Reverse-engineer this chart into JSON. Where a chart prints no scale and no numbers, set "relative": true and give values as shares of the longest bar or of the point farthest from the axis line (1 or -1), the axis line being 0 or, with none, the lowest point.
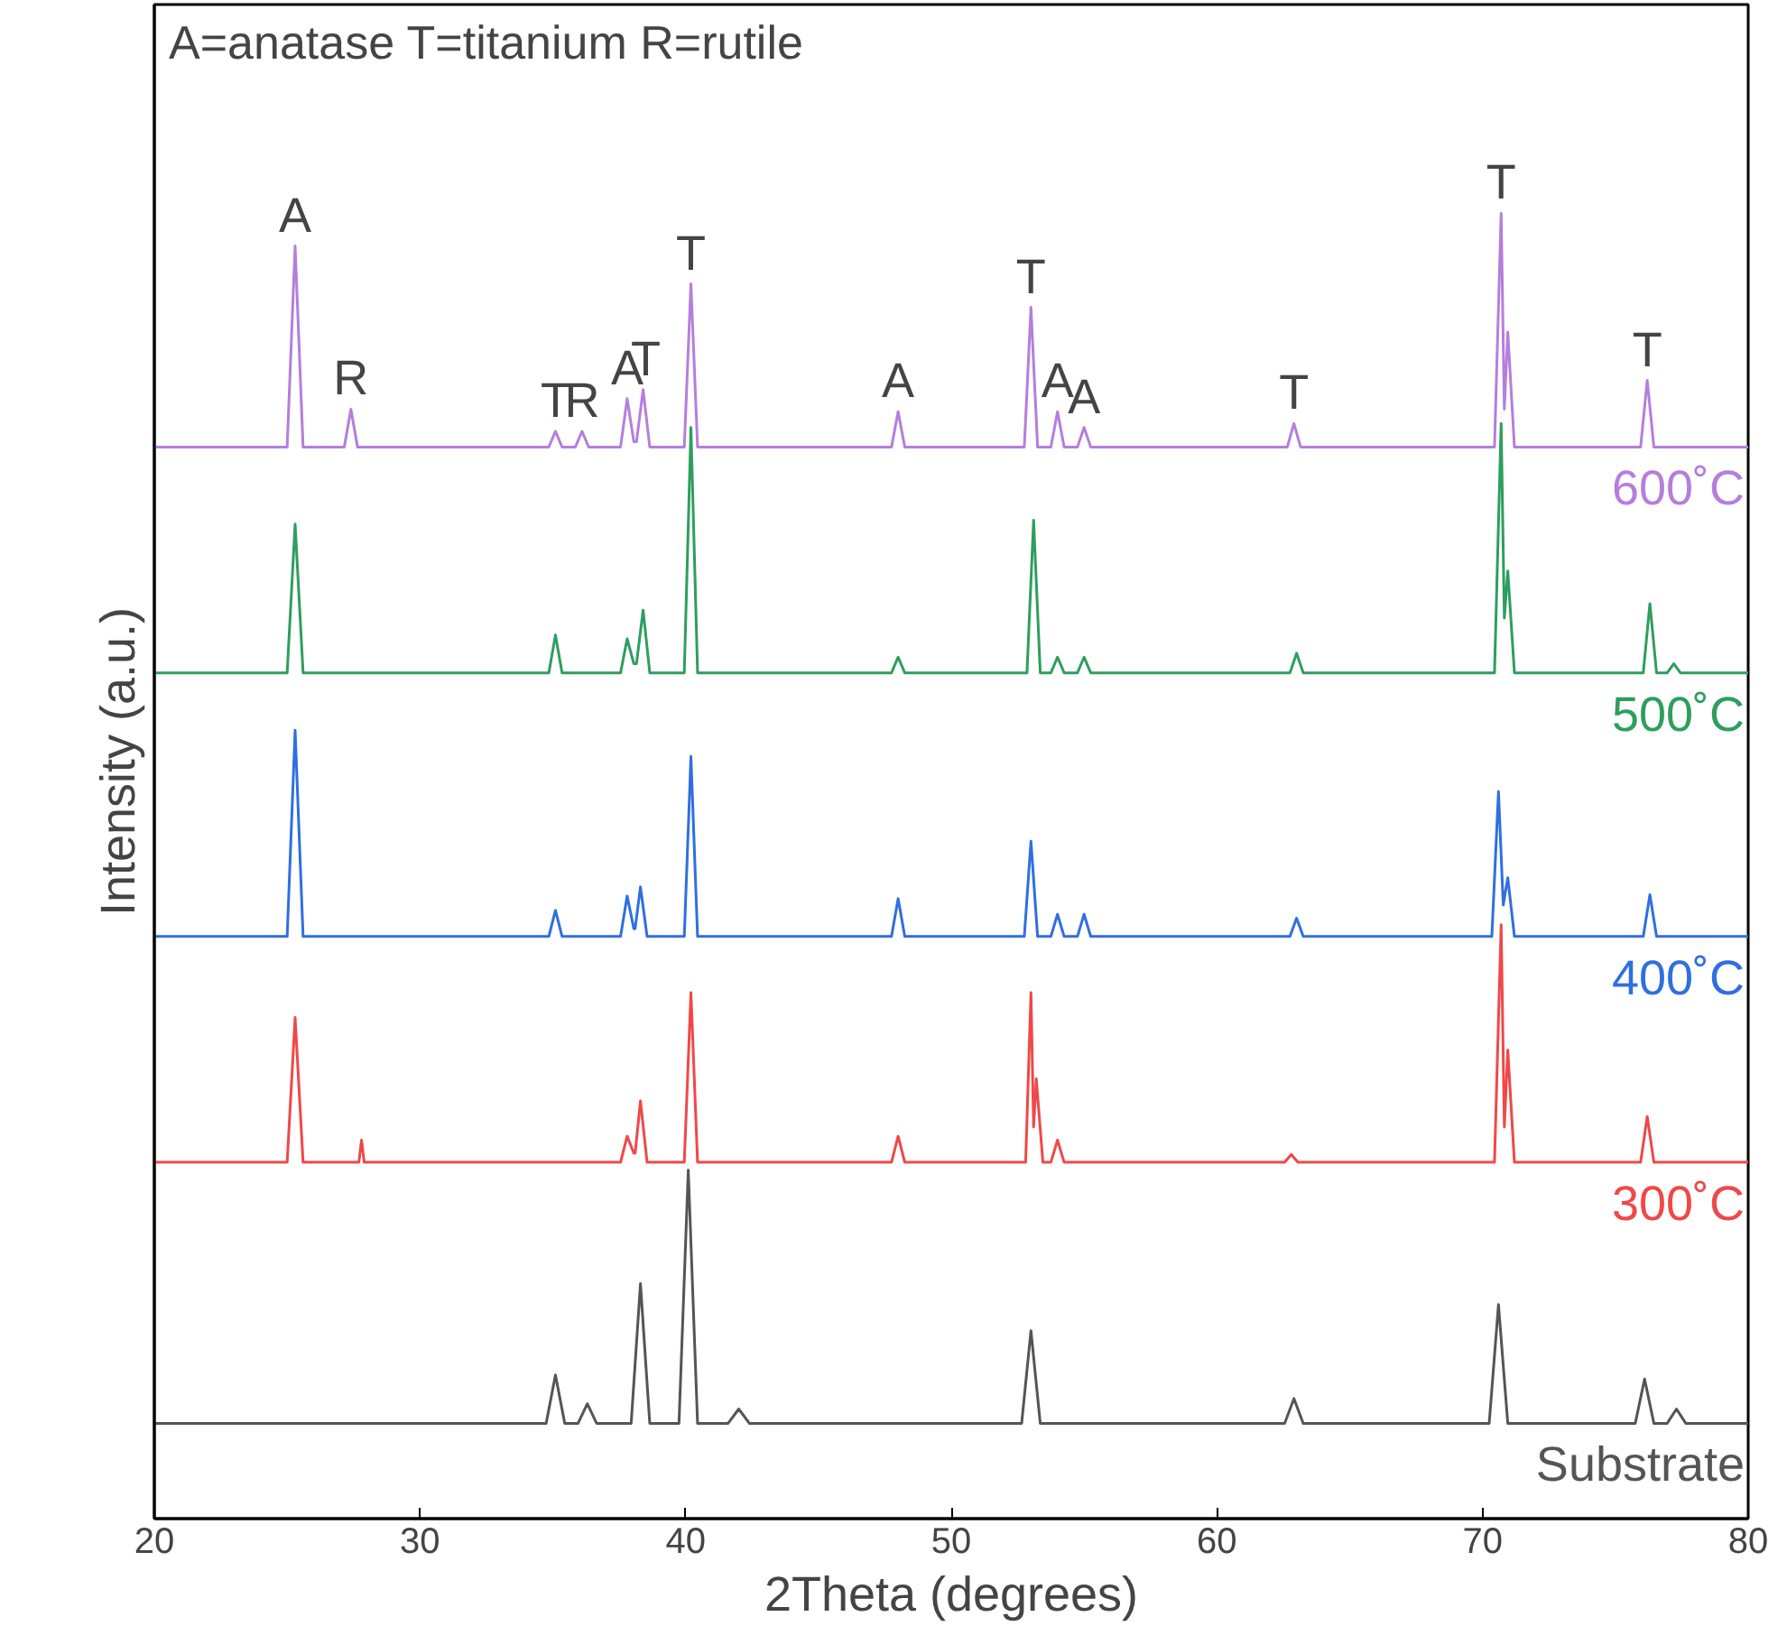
{
  "chart_data": {
    "type": "line",
    "relative": true,
    "xlabel": "2Theta (degrees)",
    "ylabel": "Intensity (a.u.)",
    "xlim": [
      20,
      80
    ],
    "xticks": [
      20,
      30,
      40,
      50,
      60,
      70,
      80
    ],
    "grid": false,
    "line_style": "solid",
    "marker": "none",
    "series": [
      {
        "name": "600˚C",
        "color": "#b57edc",
        "x": [
          20,
          25.0,
          25.3,
          25.6,
          27.15,
          27.4,
          27.65,
          34.85,
          35.1,
          35.35,
          35.85,
          36.1,
          36.35,
          37.55,
          37.8,
          38.05,
          38.15,
          38.4,
          38.65,
          39.95,
          40.2,
          40.45,
          47.75,
          48.0,
          48.25,
          52.75,
          53.0,
          53.25,
          53.75,
          54.0,
          54.25,
          54.75,
          55.0,
          55.25,
          62.65,
          62.9,
          63.15,
          70.45,
          70.7,
          70.82,
          70.95,
          71.2,
          75.95,
          76.2,
          76.45,
          80
        ],
        "values": [
          0.821,
          0.821,
          0.975,
          0.821,
          0.821,
          0.85,
          0.821,
          0.821,
          0.833,
          0.821,
          0.821,
          0.833,
          0.821,
          0.821,
          0.858,
          0.825,
          0.825,
          0.865,
          0.821,
          0.821,
          0.946,
          0.821,
          0.821,
          0.848,
          0.821,
          0.821,
          0.928,
          0.821,
          0.821,
          0.848,
          0.821,
          0.821,
          0.836,
          0.821,
          0.821,
          0.839,
          0.821,
          0.821,
          1.0,
          0.85,
          0.909,
          0.821,
          0.821,
          0.872,
          0.821,
          0.821
        ]
      },
      {
        "name": "500˚C",
        "color": "#2e9e5e",
        "x": [
          20,
          25.0,
          25.3,
          25.6,
          34.85,
          35.1,
          35.35,
          37.55,
          37.8,
          38.05,
          38.15,
          38.4,
          38.65,
          39.95,
          40.2,
          40.45,
          47.75,
          48.0,
          48.25,
          52.85,
          53.1,
          53.35,
          53.75,
          54.0,
          54.25,
          54.75,
          55.0,
          55.25,
          62.75,
          63.0,
          63.25,
          70.45,
          70.7,
          70.82,
          70.95,
          71.2,
          76.05,
          76.3,
          76.55,
          76.95,
          77.2,
          77.45,
          80
        ],
        "values": [
          0.648,
          0.648,
          0.762,
          0.648,
          0.648,
          0.677,
          0.648,
          0.648,
          0.674,
          0.655,
          0.655,
          0.696,
          0.648,
          0.648,
          0.836,
          0.648,
          0.648,
          0.66,
          0.648,
          0.648,
          0.765,
          0.648,
          0.648,
          0.66,
          0.648,
          0.648,
          0.66,
          0.648,
          0.648,
          0.663,
          0.648,
          0.648,
          0.839,
          0.69,
          0.726,
          0.648,
          0.648,
          0.701,
          0.648,
          0.648,
          0.655,
          0.648,
          0.648
        ]
      },
      {
        "name": "400˚C",
        "color": "#2f6fe0",
        "x": [
          20,
          25.0,
          25.3,
          25.6,
          34.85,
          35.1,
          35.35,
          37.55,
          37.8,
          38.05,
          38.1,
          38.3,
          38.55,
          39.95,
          40.2,
          40.45,
          47.75,
          48.0,
          48.25,
          52.75,
          53.0,
          53.25,
          53.75,
          54.0,
          54.25,
          54.75,
          55.0,
          55.25,
          62.75,
          63.0,
          63.25,
          70.35,
          70.6,
          70.78,
          70.95,
          71.2,
          76.05,
          76.3,
          76.55,
          80
        ],
        "values": [
          0.446,
          0.446,
          0.604,
          0.446,
          0.446,
          0.466,
          0.446,
          0.446,
          0.477,
          0.452,
          0.452,
          0.484,
          0.446,
          0.446,
          0.584,
          0.446,
          0.446,
          0.475,
          0.446,
          0.446,
          0.519,
          0.446,
          0.446,
          0.463,
          0.446,
          0.446,
          0.463,
          0.446,
          0.446,
          0.46,
          0.446,
          0.446,
          0.557,
          0.47,
          0.491,
          0.446,
          0.446,
          0.478,
          0.446,
          0.446
        ]
      },
      {
        "name": "300˚C",
        "color": "#f04848",
        "x": [
          20,
          25.0,
          25.3,
          25.6,
          27.7,
          27.8,
          27.9,
          37.55,
          37.8,
          38.05,
          38.1,
          38.3,
          38.55,
          39.95,
          40.2,
          40.45,
          47.75,
          48.0,
          48.25,
          52.8,
          53.0,
          53.1,
          53.2,
          53.45,
          53.75,
          54.0,
          54.25,
          62.55,
          62.8,
          63.05,
          70.45,
          70.7,
          70.82,
          70.95,
          71.2,
          75.95,
          76.2,
          76.45,
          80
        ],
        "values": [
          0.273,
          0.273,
          0.384,
          0.273,
          0.273,
          0.29,
          0.273,
          0.273,
          0.293,
          0.28,
          0.28,
          0.32,
          0.273,
          0.273,
          0.403,
          0.273,
          0.273,
          0.293,
          0.273,
          0.273,
          0.403,
          0.3,
          0.337,
          0.273,
          0.273,
          0.29,
          0.273,
          0.273,
          0.279,
          0.273,
          0.273,
          0.455,
          0.3,
          0.359,
          0.273,
          0.273,
          0.308,
          0.273,
          0.273
        ]
      },
      {
        "name": "Substrate",
        "color": "#555555",
        "x": [
          20,
          34.75,
          35.1,
          35.45,
          35.95,
          36.3,
          36.65,
          37.95,
          38.3,
          38.65,
          39.75,
          40.1,
          40.45,
          41.6,
          42.0,
          42.4,
          52.65,
          53.0,
          53.35,
          62.55,
          62.9,
          63.25,
          70.25,
          70.6,
          70.95,
          75.75,
          76.1,
          76.45,
          76.95,
          77.3,
          77.65,
          80
        ],
        "values": [
          0.073,
          0.073,
          0.11,
          0.073,
          0.073,
          0.088,
          0.073,
          0.073,
          0.18,
          0.073,
          0.073,
          0.267,
          0.073,
          0.073,
          0.084,
          0.073,
          0.073,
          0.144,
          0.073,
          0.073,
          0.092,
          0.073,
          0.073,
          0.164,
          0.073,
          0.073,
          0.107,
          0.073,
          0.073,
          0.084,
          0.073,
          0.073
        ]
      }
    ],
    "annotations": [
      "A=anatase    T=titanium    R=rutile",
      {
        "text": "A",
        "x": 25.3,
        "y": 0.975
      },
      {
        "text": "R",
        "x": 27.4,
        "y": 0.85
      },
      {
        "text": "T",
        "x": 35.1,
        "y": 0.833
      },
      {
        "text": "R",
        "x": 36.1,
        "y": 0.833
      },
      {
        "text": "A",
        "x": 37.8,
        "y": 0.858
      },
      {
        "text": "T",
        "x": 38.5,
        "y": 0.865
      },
      {
        "text": "T",
        "x": 40.2,
        "y": 0.946
      },
      {
        "text": "A",
        "x": 48.0,
        "y": 0.848
      },
      {
        "text": "T",
        "x": 53.0,
        "y": 0.928
      },
      {
        "text": "A",
        "x": 54.0,
        "y": 0.848
      },
      {
        "text": "A",
        "x": 55.0,
        "y": 0.836
      },
      {
        "text": "T",
        "x": 62.9,
        "y": 0.839
      },
      {
        "text": "T",
        "x": 70.7,
        "y": 1.0
      },
      {
        "text": "T",
        "x": 76.2,
        "y": 0.872
      }
    ]
  }
}
